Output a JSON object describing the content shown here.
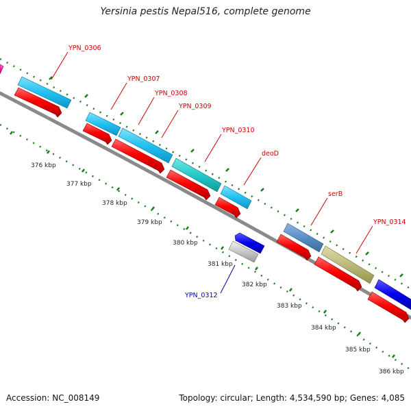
{
  "title": "Yersinia pestis Nepal516, complete genome",
  "footer": {
    "accession": "Accession: NC_008149",
    "topology": "Topology: circular; Length: 4,534,590 bp; Genes: 4,085"
  },
  "colors": {
    "backbone": "#8a8a8a",
    "tick": "#1f7d1f",
    "label_forward": "#cc0000",
    "label_reverse": "#0000aa",
    "cds": "#ff0000",
    "gene_cyan": "#22c1f0",
    "gene_teal": "#25c9c9",
    "gene_steel": "#5a8fc4",
    "gene_khaki": "#bdbb7a",
    "gene_blue": "#0000ee",
    "gene_gray": "#c8c8c8",
    "gene_magenta": "#ff1fa8"
  },
  "scale_labels": [
    "376 kbp",
    "377 kbp",
    "378 kbp",
    "379 kbp",
    "380 kbp",
    "381 kbp",
    "382 kbp",
    "383 kbp",
    "384 kbp",
    "385 kbp",
    "386 kbp"
  ],
  "genes": [
    {
      "label": "YPN_0306",
      "color": "#cc0000"
    },
    {
      "label": "YPN_0307",
      "color": "#cc0000"
    },
    {
      "label": "YPN_0308",
      "color": "#cc0000"
    },
    {
      "label": "YPN_0309",
      "color": "#cc0000"
    },
    {
      "label": "YPN_0310",
      "color": "#cc0000"
    },
    {
      "label": "deoD",
      "color": "#cc0000"
    },
    {
      "label": "serB",
      "color": "#cc0000"
    },
    {
      "label": "YPN_0314",
      "color": "#cc0000"
    },
    {
      "label": "YPN_0312",
      "color": "#0000aa"
    }
  ]
}
